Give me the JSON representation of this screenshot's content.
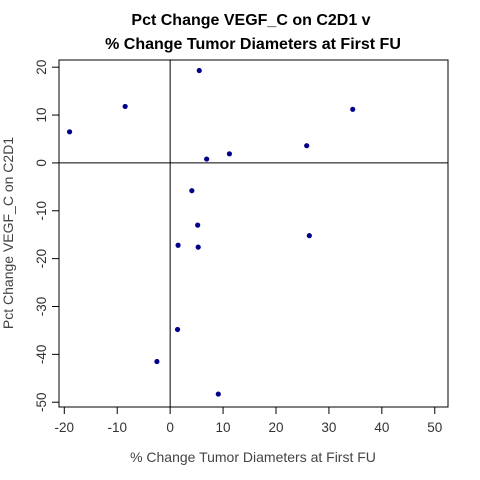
{
  "chart_data": {
    "type": "scatter",
    "title_lines": [
      "Pct Change VEGF_C on C2D1 v",
      "% Change Tumor Diameters at First FU"
    ],
    "xlabel": "% Change Tumor Diameters at First FU",
    "ylabel": "Pct Change VEGF_C on C2D1",
    "xlim": [
      -21,
      52.5
    ],
    "ylim": [
      -51,
      21.5
    ],
    "xticks": [
      -20,
      -10,
      0,
      10,
      20,
      30,
      40,
      50
    ],
    "yticks": [
      -50,
      -40,
      -30,
      -20,
      -10,
      0,
      10,
      20
    ],
    "reference_lines": {
      "x": 0,
      "y": 0
    },
    "point_color": "#00008b",
    "points": [
      {
        "x": 5.5,
        "y": 19.3
      },
      {
        "x": -8.5,
        "y": 11.8
      },
      {
        "x": -19.0,
        "y": 6.5
      },
      {
        "x": 34.5,
        "y": 11.2
      },
      {
        "x": 25.8,
        "y": 3.6
      },
      {
        "x": 11.2,
        "y": 1.9
      },
      {
        "x": 6.9,
        "y": 0.8
      },
      {
        "x": 4.1,
        "y": -5.8
      },
      {
        "x": 5.2,
        "y": -13.0
      },
      {
        "x": 26.3,
        "y": -15.2
      },
      {
        "x": 1.5,
        "y": -17.2
      },
      {
        "x": 5.3,
        "y": -17.6
      },
      {
        "x": 1.4,
        "y": -34.8
      },
      {
        "x": -2.5,
        "y": -41.5
      },
      {
        "x": 9.1,
        "y": -48.3
      }
    ]
  }
}
